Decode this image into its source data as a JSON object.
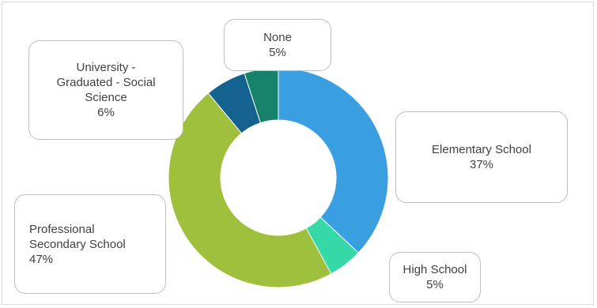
{
  "chart_data": {
    "type": "pie",
    "variant": "donut",
    "title": "",
    "slices": [
      {
        "label": "Elementary School",
        "pct_label": "37%",
        "value": 37,
        "color": "#3a9fe0"
      },
      {
        "label": "High School",
        "pct_label": "5%",
        "value": 5,
        "color": "#34d9a7"
      },
      {
        "label": "Professional Secondary School",
        "pct_label": "47%",
        "value": 47,
        "color": "#9ec03c"
      },
      {
        "label": "University - Graduated - Social Science",
        "pct_label": "6%",
        "value": 6,
        "color": "#14628f"
      },
      {
        "label": "None",
        "pct_label": "5%",
        "value": 5,
        "color": "#16826a"
      }
    ],
    "callouts": {
      "none": {
        "lines": [
          "None"
        ],
        "pct": "5%"
      },
      "university": {
        "lines": [
          "University -",
          "Graduated - Social",
          "Science"
        ],
        "pct": "6%"
      },
      "elementary": {
        "lines": [
          "Elementary School"
        ],
        "pct": "37%"
      },
      "professional": {
        "lines": [
          "Professional",
          "Secondary School"
        ],
        "pct": "47%"
      },
      "high": {
        "lines": [
          "High School"
        ],
        "pct": "5%"
      }
    }
  }
}
